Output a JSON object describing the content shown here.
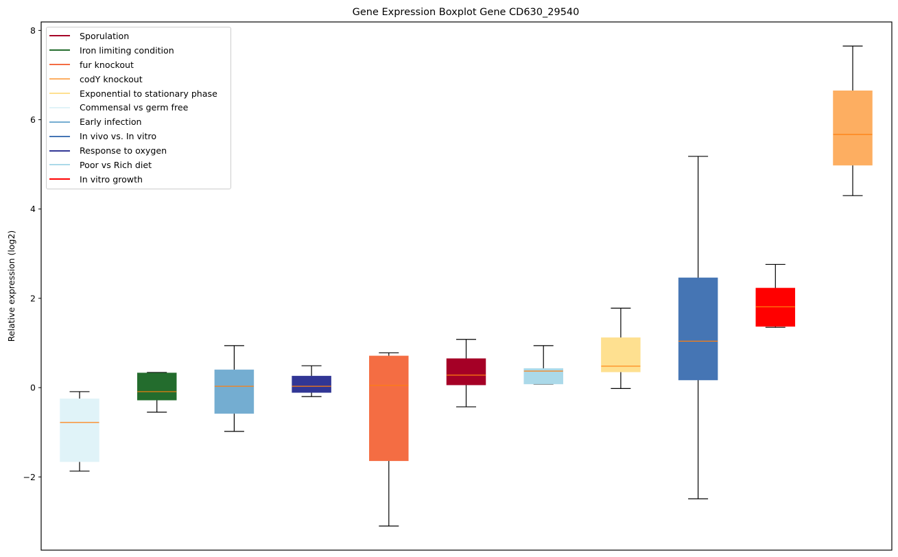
{
  "chart_data": {
    "type": "boxplot",
    "title": "Gene Expression Boxplot Gene CD630_29540",
    "xlabel": "",
    "ylabel": "Relative expression (log2)",
    "ylim": [
      -3.64,
      8.19
    ],
    "yticks": [
      -2,
      0,
      2,
      4,
      6,
      8
    ],
    "ytick_labels": [
      "−2",
      "0",
      "2",
      "4",
      "6",
      "8"
    ],
    "grid": false,
    "legend_position": "top-left",
    "median_color": "#ff7f0e",
    "series": [
      {
        "name": "Commensal vs germ free",
        "color": "#e0f3f8",
        "whisker_low": -1.87,
        "q1": -1.66,
        "median": -0.78,
        "q3": -0.25,
        "whisker_high": -0.09
      },
      {
        "name": "Iron limiting condition",
        "color": "#236c2d",
        "whisker_low": -0.55,
        "q1": -0.28,
        "median": -0.09,
        "q3": 0.33,
        "whisker_high": 0.34
      },
      {
        "name": "Early infection",
        "color": "#74add1",
        "whisker_low": -0.98,
        "q1": -0.58,
        "median": 0.03,
        "q3": 0.4,
        "whisker_high": 0.94
      },
      {
        "name": "Response to oxygen",
        "color": "#313695",
        "whisker_low": -0.2,
        "q1": -0.11,
        "median": 0.03,
        "q3": 0.26,
        "whisker_high": 0.49
      },
      {
        "name": "fur knockout",
        "color": "#f46d43",
        "whisker_low": -3.1,
        "q1": -1.64,
        "median": 0.05,
        "q3": 0.71,
        "whisker_high": 0.78
      },
      {
        "name": "Sporulation",
        "color": "#a50026",
        "whisker_low": -0.43,
        "q1": 0.06,
        "median": 0.28,
        "q3": 0.65,
        "whisker_high": 1.08
      },
      {
        "name": "Poor vs Rich diet",
        "color": "#abd9e9",
        "whisker_low": 0.08,
        "q1": 0.08,
        "median": 0.37,
        "q3": 0.43,
        "whisker_high": 0.94
      },
      {
        "name": "Exponential to stationary phase",
        "color": "#fee090",
        "whisker_low": -0.02,
        "q1": 0.35,
        "median": 0.48,
        "q3": 1.12,
        "whisker_high": 1.78
      },
      {
        "name": "In vivo vs. In vitro",
        "color": "#4575b4",
        "whisker_low": -2.49,
        "q1": 0.17,
        "median": 1.04,
        "q3": 2.46,
        "whisker_high": 5.18
      },
      {
        "name": "In vitro growth",
        "color": "#ff0000",
        "whisker_low": 1.35,
        "q1": 1.37,
        "median": 1.81,
        "q3": 2.23,
        "whisker_high": 2.76
      },
      {
        "name": "codY knockout",
        "color": "#fdae61",
        "whisker_low": 4.3,
        "q1": 4.98,
        "median": 5.67,
        "q3": 6.65,
        "whisker_high": 7.65
      }
    ],
    "legend": [
      {
        "label": "Sporulation",
        "color": "#a50026"
      },
      {
        "label": "Iron limiting condition",
        "color": "#236c2d"
      },
      {
        "label": "fur knockout",
        "color": "#f46d43"
      },
      {
        "label": "codY knockout",
        "color": "#fdae61"
      },
      {
        "label": "Exponential to stationary phase",
        "color": "#fee090"
      },
      {
        "label": "Commensal vs germ free",
        "color": "#e0f3f8"
      },
      {
        "label": "Early infection",
        "color": "#74add1"
      },
      {
        "label": "In vivo vs. In vitro",
        "color": "#4575b4"
      },
      {
        "label": "Response to oxygen",
        "color": "#313695"
      },
      {
        "label": "Poor vs Rich diet",
        "color": "#abd9e9"
      },
      {
        "label": "In vitro growth",
        "color": "#ff0000"
      }
    ]
  }
}
